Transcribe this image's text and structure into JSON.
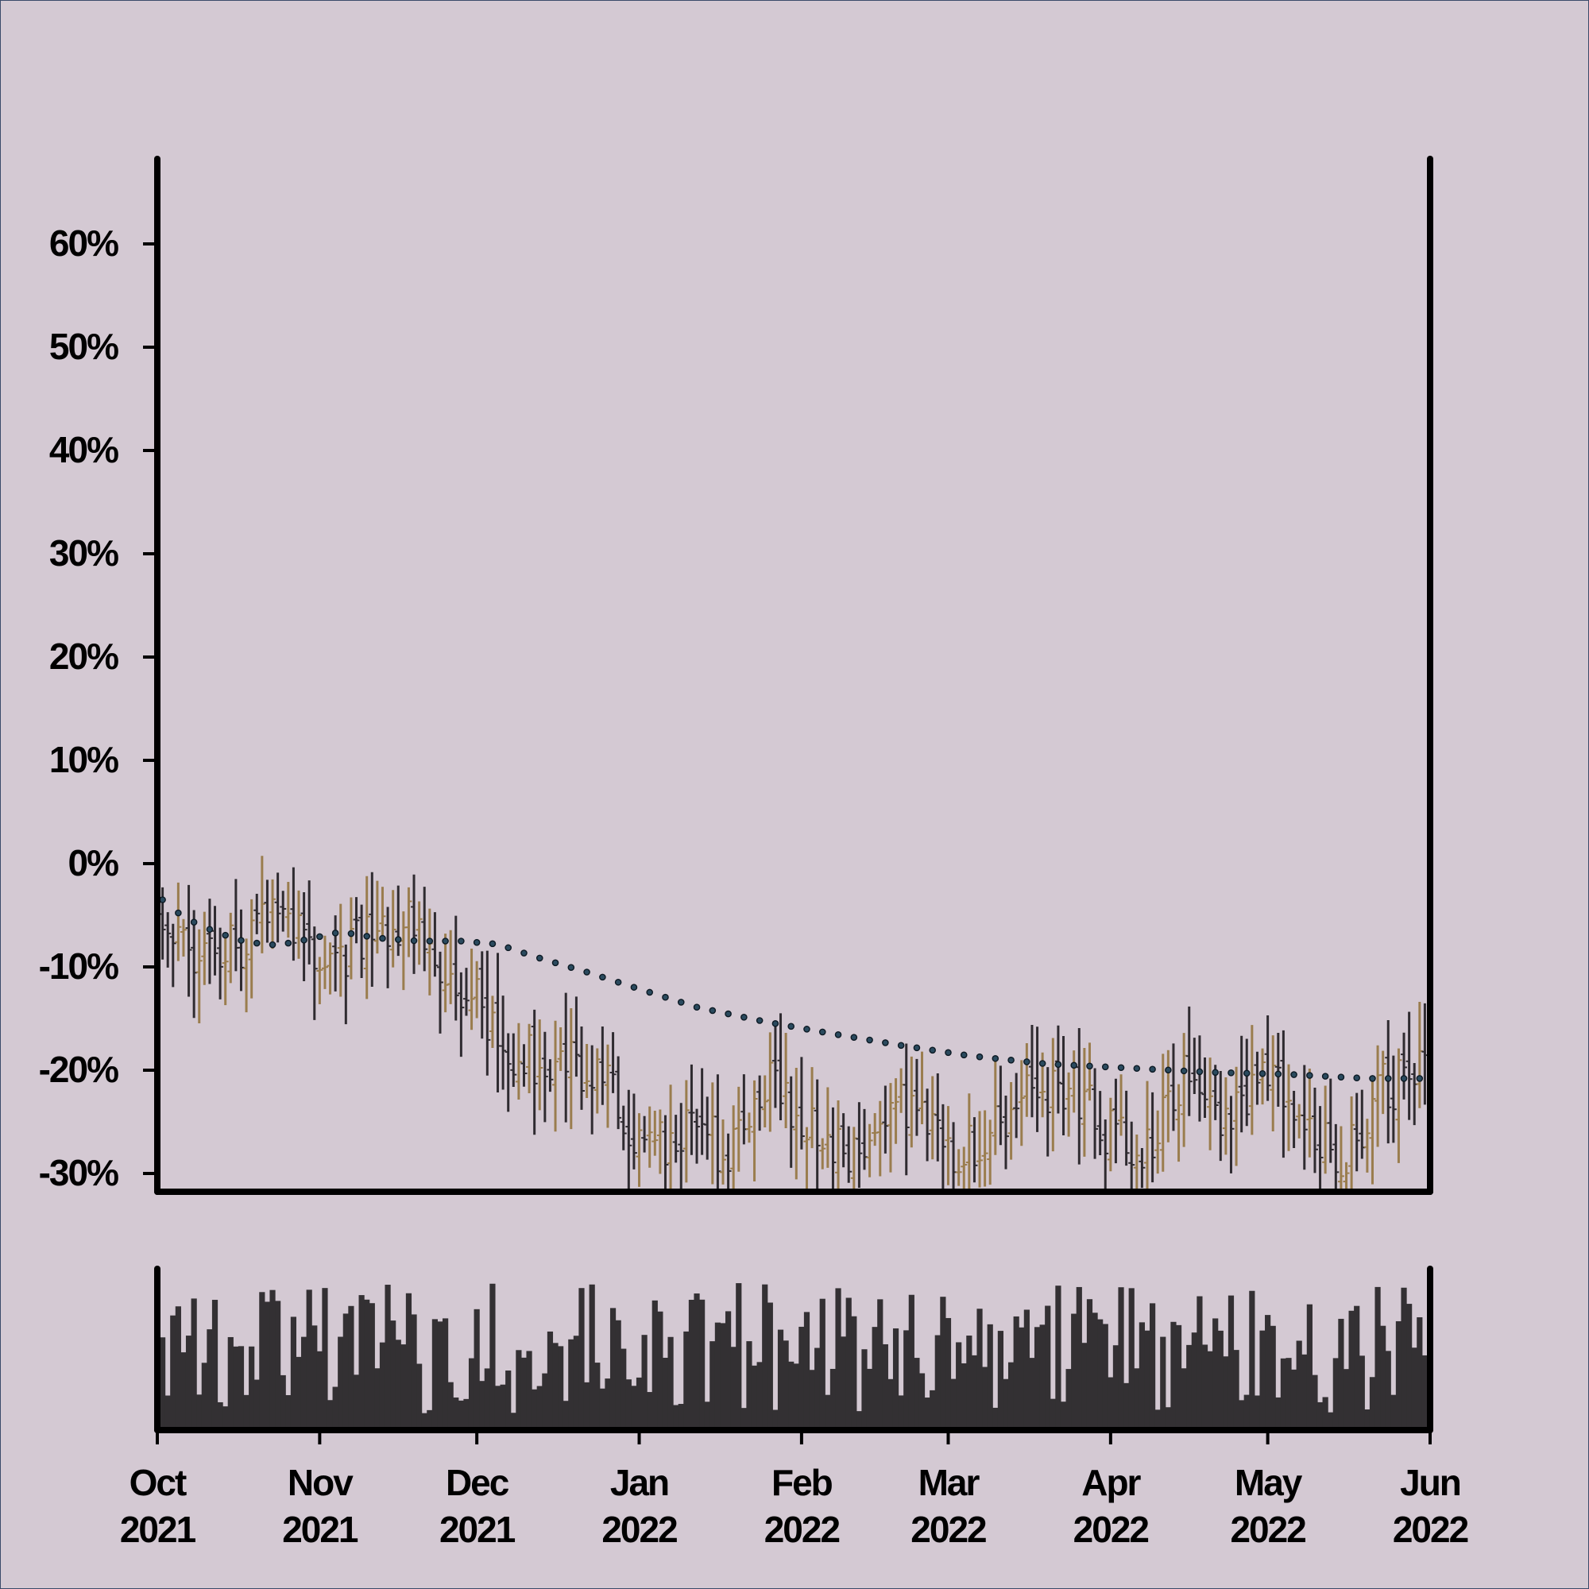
{
  "chart_data": {
    "type": "ohlc",
    "title": "",
    "xlabel": "",
    "ylabel": "",
    "x_range": [
      "2021-10-01",
      "2022-06-01"
    ],
    "y_range": [
      -31.5,
      68
    ],
    "y_ticks": [
      60,
      50,
      40,
      30,
      20,
      10,
      0,
      -10,
      -20,
      -30
    ],
    "y_tick_labels": [
      "60%",
      "50%",
      "40%",
      "30%",
      "20%",
      "10%",
      "0%",
      "-10%",
      "-20%",
      "-30%"
    ],
    "x_ticks": [
      {
        "date": "2021-10-01",
        "month": "Oct",
        "year": "2021"
      },
      {
        "date": "2021-11-01",
        "month": "Nov",
        "year": "2021"
      },
      {
        "date": "2021-12-01",
        "month": "Dec",
        "year": "2021"
      },
      {
        "date": "2022-01-01",
        "month": "Jan",
        "year": "2022"
      },
      {
        "date": "2022-02-01",
        "month": "Feb",
        "year": "2022"
      },
      {
        "date": "2022-03-01",
        "month": "Mar",
        "year": "2022"
      },
      {
        "date": "2022-04-01",
        "month": "Apr",
        "year": "2022"
      },
      {
        "date": "2022-05-01",
        "month": "May",
        "year": "2022"
      },
      {
        "date": "2022-06-01",
        "month": "Jun",
        "year": "2022"
      }
    ],
    "colors": {
      "background": "#d4c9d3",
      "up": "#9a7d4e",
      "down": "#2f2b30",
      "trend": "#1e3a4c",
      "volume": "#333033",
      "axis": "#000000"
    },
    "grid": false,
    "legend": "none",
    "trend_anchors": [
      {
        "date": "2021-10-02",
        "value": -3.5
      },
      {
        "date": "2021-10-06",
        "value": -5.2
      },
      {
        "date": "2021-10-12",
        "value": -6.6
      },
      {
        "date": "2021-10-18",
        "value": -7.6
      },
      {
        "date": "2021-10-24",
        "value": -7.9
      },
      {
        "date": "2021-10-30",
        "value": -7.3
      },
      {
        "date": "2021-11-05",
        "value": -6.6
      },
      {
        "date": "2021-11-12",
        "value": -7.2
      },
      {
        "date": "2021-11-20",
        "value": -7.5
      },
      {
        "date": "2021-11-28",
        "value": -7.5
      },
      {
        "date": "2021-12-05",
        "value": -7.8
      },
      {
        "date": "2021-12-12",
        "value": -9.0
      },
      {
        "date": "2021-12-22",
        "value": -10.5
      },
      {
        "date": "2022-01-02",
        "value": -12.3
      },
      {
        "date": "2022-01-12",
        "value": -13.9
      },
      {
        "date": "2022-01-25",
        "value": -15.3
      },
      {
        "date": "2022-02-05",
        "value": -16.3
      },
      {
        "date": "2022-02-20",
        "value": -17.6
      },
      {
        "date": "2022-03-05",
        "value": -18.6
      },
      {
        "date": "2022-03-20",
        "value": -19.4
      },
      {
        "date": "2022-04-05",
        "value": -19.8
      },
      {
        "date": "2022-04-20",
        "value": -20.2
      },
      {
        "date": "2022-05-05",
        "value": -20.4
      },
      {
        "date": "2022-05-20",
        "value": -20.8
      },
      {
        "date": "2022-05-31",
        "value": -20.8
      }
    ],
    "price_anchors": [
      {
        "date": "2021-10-01",
        "value": -4
      },
      {
        "date": "2021-10-08",
        "value": -9
      },
      {
        "date": "2021-10-16",
        "value": -8
      },
      {
        "date": "2021-10-26",
        "value": -4.5
      },
      {
        "date": "2021-11-03",
        "value": -10
      },
      {
        "date": "2021-11-10",
        "value": -7
      },
      {
        "date": "2021-11-18",
        "value": -6
      },
      {
        "date": "2021-11-25",
        "value": -10
      },
      {
        "date": "2021-12-01",
        "value": -13
      },
      {
        "date": "2021-12-08",
        "value": -19
      },
      {
        "date": "2021-12-18",
        "value": -19
      },
      {
        "date": "2021-12-26",
        "value": -22
      },
      {
        "date": "2022-01-03",
        "value": -28
      },
      {
        "date": "2022-01-12",
        "value": -24
      },
      {
        "date": "2022-01-18",
        "value": -29
      },
      {
        "date": "2022-01-25",
        "value": -21
      },
      {
        "date": "2022-02-02",
        "value": -25
      },
      {
        "date": "2022-02-12",
        "value": -29
      },
      {
        "date": "2022-02-20",
        "value": -23
      },
      {
        "date": "2022-03-01",
        "value": -28
      },
      {
        "date": "2022-03-08",
        "value": -27
      },
      {
        "date": "2022-03-15",
        "value": -22
      },
      {
        "date": "2022-03-25",
        "value": -22
      },
      {
        "date": "2022-04-02",
        "value": -27
      },
      {
        "date": "2022-04-08",
        "value": -27
      },
      {
        "date": "2022-04-15",
        "value": -20
      },
      {
        "date": "2022-04-22",
        "value": -24
      },
      {
        "date": "2022-05-01",
        "value": -21
      },
      {
        "date": "2022-05-08",
        "value": -25
      },
      {
        "date": "2022-05-15",
        "value": -29
      },
      {
        "date": "2022-05-22",
        "value": -22
      },
      {
        "date": "2022-05-31",
        "value": -20
      }
    ]
  }
}
